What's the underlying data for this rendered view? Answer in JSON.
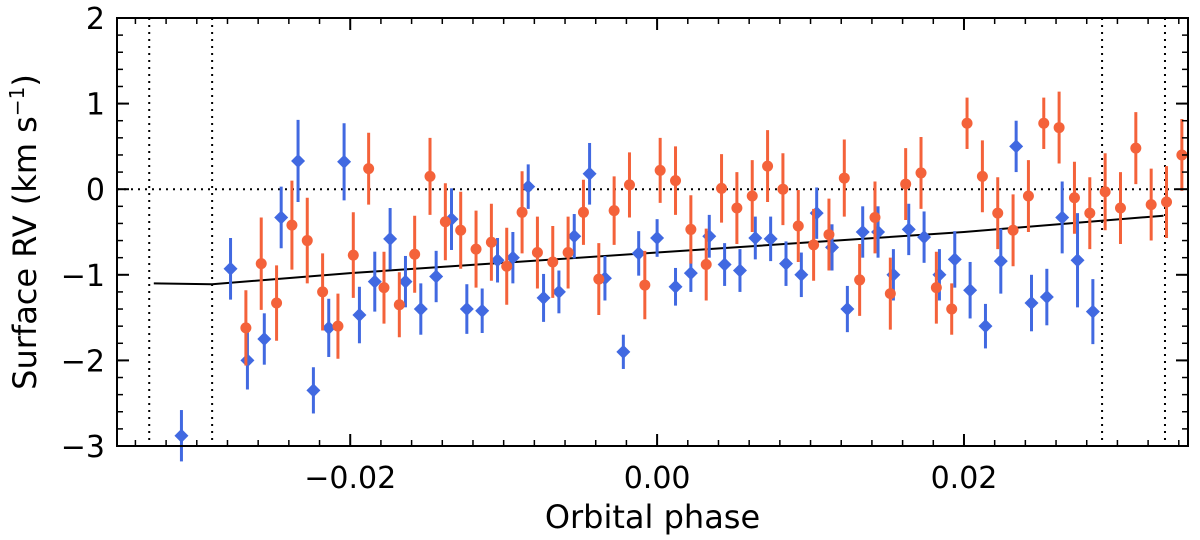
{
  "chart_data": {
    "type": "scatter",
    "title": "",
    "xlabel": "Orbital phase",
    "ylabel": "Surface RV (km s",
    "ylabel_sup": "−1",
    "ylabel_close": ")",
    "xlim": [
      -0.0352,
      0.0346
    ],
    "ylim": [
      -3,
      2
    ],
    "x_ticks": [
      {
        "value": -0.02,
        "label": "−0.02"
      },
      {
        "value": 0.0,
        "label": "0.00"
      },
      {
        "value": 0.02,
        "label": "0.02"
      }
    ],
    "y_ticks": [
      {
        "value": -3,
        "label": "−3"
      },
      {
        "value": -2,
        "label": "−2"
      },
      {
        "value": -1,
        "label": "−1"
      },
      {
        "value": 0,
        "label": "0"
      },
      {
        "value": 1,
        "label": "1"
      },
      {
        "value": 2,
        "label": "2"
      }
    ],
    "x_minor_step": 0.002,
    "y_minor_step": 0.2,
    "vlines": [
      -0.0331,
      -0.029,
      0.029,
      0.0331
    ],
    "hline": 0,
    "model_line": {
      "color": "#000000",
      "points": [
        [
          -0.0328,
          -1.1
        ],
        [
          -0.029,
          -1.11
        ],
        [
          -0.02,
          -0.98
        ],
        [
          -0.01,
          -0.86
        ],
        [
          0.0,
          -0.74
        ],
        [
          0.01,
          -0.62
        ],
        [
          0.02,
          -0.5
        ],
        [
          0.033,
          -0.31
        ]
      ]
    },
    "series": [
      {
        "color": "#4169e1",
        "marker": "diamond",
        "points": [
          [
            -0.031,
            -2.88,
            0.3
          ],
          [
            -0.0278,
            -0.93,
            0.36
          ],
          [
            -0.0267,
            -2.0,
            0.34
          ],
          [
            -0.0256,
            -1.75,
            0.3
          ],
          [
            -0.0245,
            -0.33,
            0.36
          ],
          [
            -0.0234,
            0.33,
            0.48
          ],
          [
            -0.0224,
            -2.35,
            0.27
          ],
          [
            -0.0214,
            -1.62,
            0.34
          ],
          [
            -0.0204,
            0.32,
            0.45
          ],
          [
            -0.0194,
            -1.47,
            0.33
          ],
          [
            -0.0184,
            -1.08,
            0.35
          ],
          [
            -0.0174,
            -0.58,
            0.36
          ],
          [
            -0.0164,
            -1.08,
            0.3
          ],
          [
            -0.0154,
            -1.4,
            0.3
          ],
          [
            -0.0144,
            -1.02,
            0.3
          ],
          [
            -0.0134,
            -0.35,
            0.36
          ],
          [
            -0.0124,
            -1.4,
            0.29
          ],
          [
            -0.0114,
            -1.42,
            0.26
          ],
          [
            -0.0104,
            -0.83,
            0.26
          ],
          [
            -0.0094,
            -0.8,
            0.3
          ],
          [
            -0.0084,
            0.03,
            0.26
          ],
          [
            -0.0074,
            -1.27,
            0.28
          ],
          [
            -0.0064,
            -1.2,
            0.25
          ],
          [
            -0.0054,
            -0.55,
            0.26
          ],
          [
            -0.0044,
            0.18,
            0.36
          ],
          [
            -0.0034,
            -1.04,
            0.26
          ],
          [
            -0.0022,
            -1.9,
            0.2
          ],
          [
            -0.0012,
            -0.75,
            0.26
          ],
          [
            0.0,
            -0.57,
            0.22
          ],
          [
            0.0012,
            -1.14,
            0.22
          ],
          [
            0.0022,
            -0.98,
            0.22
          ],
          [
            0.0034,
            -0.55,
            0.25
          ],
          [
            0.0044,
            -0.88,
            0.25
          ],
          [
            0.0054,
            -0.95,
            0.25
          ],
          [
            0.0064,
            -0.57,
            0.25
          ],
          [
            0.0074,
            -0.58,
            0.26
          ],
          [
            0.0084,
            -0.87,
            0.26
          ],
          [
            0.0094,
            -1.0,
            0.26
          ],
          [
            0.0104,
            -0.28,
            0.3
          ],
          [
            0.0114,
            -0.68,
            0.27
          ],
          [
            0.0124,
            -1.4,
            0.27
          ],
          [
            0.0134,
            -0.5,
            0.3
          ],
          [
            0.0144,
            -0.5,
            0.3
          ],
          [
            0.0154,
            -1.0,
            0.3
          ],
          [
            0.0164,
            -0.47,
            0.3
          ],
          [
            0.0174,
            -0.56,
            0.3
          ],
          [
            0.0184,
            -1.0,
            0.3
          ],
          [
            0.0194,
            -0.82,
            0.33
          ],
          [
            0.0204,
            -1.18,
            0.33
          ],
          [
            0.0214,
            -1.6,
            0.26
          ],
          [
            0.0224,
            -0.84,
            0.38
          ],
          [
            0.0234,
            0.5,
            0.3
          ],
          [
            0.0244,
            -1.33,
            0.33
          ],
          [
            0.0254,
            -1.26,
            0.33
          ],
          [
            0.0264,
            -0.33,
            0.42
          ],
          [
            0.0274,
            -0.83,
            0.55
          ],
          [
            0.0284,
            -1.43,
            0.38
          ]
        ]
      },
      {
        "color": "#f4623a",
        "marker": "circle",
        "points": [
          [
            -0.0268,
            -1.62,
            0.44
          ],
          [
            -0.0258,
            -0.87,
            0.54
          ],
          [
            -0.0248,
            -1.33,
            0.44
          ],
          [
            -0.0238,
            -0.42,
            0.52
          ],
          [
            -0.0228,
            -0.6,
            0.5
          ],
          [
            -0.0218,
            -1.2,
            0.45
          ],
          [
            -0.0208,
            -1.6,
            0.38
          ],
          [
            -0.0198,
            -0.77,
            0.5
          ],
          [
            -0.0188,
            0.24,
            0.42
          ],
          [
            -0.0178,
            -1.15,
            0.42
          ],
          [
            -0.0168,
            -1.35,
            0.38
          ],
          [
            -0.0158,
            -0.76,
            0.45
          ],
          [
            -0.0148,
            0.15,
            0.45
          ],
          [
            -0.0138,
            -0.38,
            0.45
          ],
          [
            -0.0128,
            -0.48,
            0.45
          ],
          [
            -0.0118,
            -0.7,
            0.45
          ],
          [
            -0.0108,
            -0.62,
            0.45
          ],
          [
            -0.0098,
            -0.9,
            0.45
          ],
          [
            -0.0088,
            -0.27,
            0.48
          ],
          [
            -0.0078,
            -0.74,
            0.42
          ],
          [
            -0.0068,
            -0.85,
            0.42
          ],
          [
            -0.0058,
            -0.74,
            0.42
          ],
          [
            -0.0048,
            -0.27,
            0.38
          ],
          [
            -0.0038,
            -1.05,
            0.42
          ],
          [
            -0.0028,
            -0.25,
            0.4
          ],
          [
            -0.0018,
            0.05,
            0.38
          ],
          [
            -0.0008,
            -1.12,
            0.4
          ],
          [
            0.0002,
            0.22,
            0.38
          ],
          [
            0.0012,
            0.1,
            0.4
          ],
          [
            0.0022,
            -0.47,
            0.4
          ],
          [
            0.0032,
            -0.88,
            0.42
          ],
          [
            0.0042,
            0.01,
            0.4
          ],
          [
            0.0052,
            -0.22,
            0.42
          ],
          [
            0.0062,
            -0.08,
            0.42
          ],
          [
            0.0072,
            0.27,
            0.42
          ],
          [
            0.0082,
            0.0,
            0.42
          ],
          [
            0.0092,
            -0.43,
            0.42
          ],
          [
            0.0102,
            -0.65,
            0.42
          ],
          [
            0.0112,
            -0.53,
            0.42
          ],
          [
            0.0122,
            0.13,
            0.45
          ],
          [
            0.0132,
            -1.06,
            0.42
          ],
          [
            0.0142,
            -0.33,
            0.42
          ],
          [
            0.0152,
            -1.22,
            0.42
          ],
          [
            0.0162,
            0.06,
            0.42
          ],
          [
            0.0172,
            0.19,
            0.42
          ],
          [
            0.0182,
            -1.15,
            0.42
          ],
          [
            0.0192,
            -1.4,
            0.3
          ],
          [
            0.0202,
            0.77,
            0.3
          ],
          [
            0.0212,
            0.15,
            0.42
          ],
          [
            0.0222,
            -0.28,
            0.42
          ],
          [
            0.0232,
            -0.48,
            0.42
          ],
          [
            0.0242,
            -0.08,
            0.42
          ],
          [
            0.0252,
            0.77,
            0.3
          ],
          [
            0.0262,
            0.72,
            0.42
          ],
          [
            0.0272,
            -0.1,
            0.42
          ],
          [
            0.0282,
            -0.28,
            0.42
          ],
          [
            0.0292,
            -0.03,
            0.45
          ],
          [
            0.0302,
            -0.22,
            0.42
          ],
          [
            0.0312,
            0.48,
            0.42
          ],
          [
            0.0322,
            -0.18,
            0.42
          ],
          [
            0.0332,
            -0.15,
            0.42
          ],
          [
            0.0342,
            0.4,
            0.42
          ]
        ]
      }
    ]
  }
}
